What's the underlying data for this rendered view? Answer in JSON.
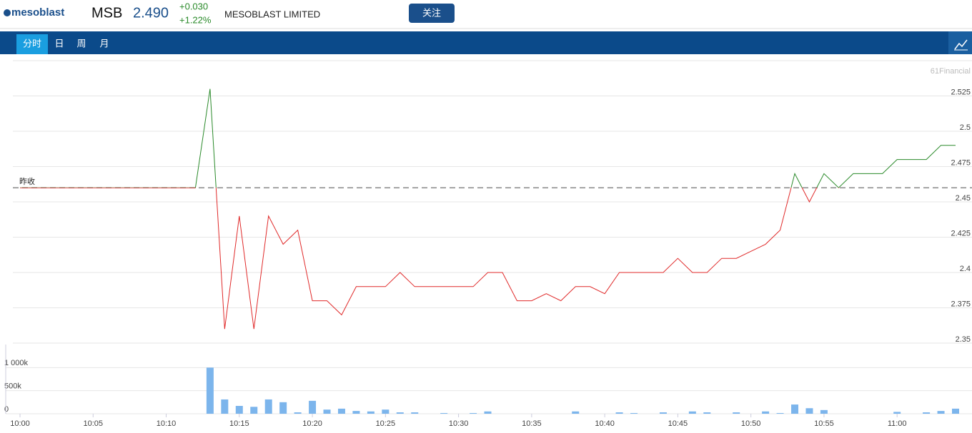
{
  "header": {
    "logo": "mesoblast",
    "symbol": "MSB",
    "price": "2.490",
    "change": "+0.030",
    "change_pct": "+1.22%",
    "company": "MESOBLAST LIMITED",
    "follow_button": "关注"
  },
  "tabs": [
    "分时",
    "日",
    "周",
    "月"
  ],
  "chart_data": [
    {
      "type": "line",
      "watermark": "61Financial",
      "x": [
        "10:00",
        "10:01",
        "10:02",
        "10:03",
        "10:04",
        "10:05",
        "10:06",
        "10:07",
        "10:08",
        "10:09",
        "10:10",
        "10:11",
        "10:12",
        "10:13",
        "10:14",
        "10:15",
        "10:16",
        "10:17",
        "10:18",
        "10:19",
        "10:20",
        "10:21",
        "10:22",
        "10:23",
        "10:24",
        "10:25",
        "10:26",
        "10:27",
        "10:28",
        "10:29",
        "10:30",
        "10:31",
        "10:32",
        "10:33",
        "10:34",
        "10:35",
        "10:36",
        "10:37",
        "10:38",
        "10:39",
        "10:40",
        "10:41",
        "10:42",
        "10:43",
        "10:44",
        "10:45",
        "10:46",
        "10:47",
        "10:48",
        "10:49",
        "10:50",
        "10:51",
        "10:52",
        "10:53",
        "10:54",
        "10:55",
        "10:56",
        "10:57",
        "10:58",
        "10:59",
        "11:00",
        "11:01",
        "11:02",
        "11:03",
        "11:04"
      ],
      "xticks": [
        0,
        5,
        10,
        15,
        20,
        25,
        30,
        35,
        40,
        45,
        50,
        55,
        60
      ],
      "values": [
        2.46,
        2.46,
        2.46,
        2.46,
        2.46,
        2.46,
        2.46,
        2.46,
        2.46,
        2.46,
        2.46,
        2.46,
        2.46,
        2.53,
        2.36,
        2.44,
        2.36,
        2.44,
        2.42,
        2.43,
        2.38,
        2.38,
        2.37,
        2.39,
        2.39,
        2.39,
        2.4,
        2.39,
        2.39,
        2.39,
        2.39,
        2.39,
        2.4,
        2.4,
        2.38,
        2.38,
        2.385,
        2.38,
        2.39,
        2.39,
        2.385,
        2.4,
        2.4,
        2.4,
        2.4,
        2.41,
        2.4,
        2.4,
        2.41,
        2.41,
        2.415,
        2.42,
        2.43,
        2.47,
        2.45,
        2.47,
        2.46,
        2.47,
        2.47,
        2.47,
        2.48,
        2.48,
        2.48,
        2.49,
        2.49
      ],
      "up_color": "#2a8a2a",
      "down_color": "#e02a2a",
      "reference": {
        "label": "昨收",
        "value": 2.46
      },
      "ylim": [
        2.35,
        2.55
      ],
      "yticks": [
        2.35,
        2.375,
        2.4,
        2.425,
        2.45,
        2.475,
        2.5,
        2.525
      ],
      "grid": true
    },
    {
      "type": "bar",
      "color": "#7cb5ec",
      "values": [
        0,
        0,
        0,
        0,
        0,
        0,
        0,
        0,
        0,
        0,
        0,
        0,
        0,
        1000000,
        310000,
        170000,
        150000,
        310000,
        250000,
        30000,
        280000,
        90000,
        110000,
        60000,
        50000,
        90000,
        30000,
        30000,
        0,
        15000,
        0,
        15000,
        50000,
        0,
        0,
        0,
        0,
        0,
        50000,
        0,
        0,
        30000,
        15000,
        0,
        30000,
        0,
        50000,
        30000,
        0,
        30000,
        0,
        50000,
        15000,
        200000,
        120000,
        80000,
        0,
        0,
        0,
        0,
        40000,
        0,
        30000,
        60000,
        110000
      ],
      "ylim": [
        0,
        1500000
      ],
      "yticks": [
        0,
        {
          "value": 500000,
          "label": "500k"
        },
        {
          "value": 1000000,
          "label": "1 000k"
        }
      ],
      "grid": true
    }
  ]
}
